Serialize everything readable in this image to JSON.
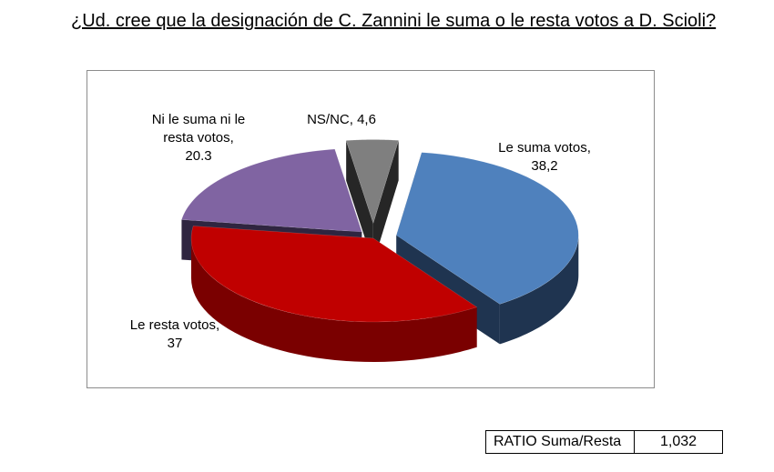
{
  "title": "¿Ud. cree que la designación de C. Zannini le suma o le resta votos a D. Scioli?",
  "chart_data": {
    "type": "pie",
    "title": "¿Ud. cree que la designación de C. Zannini le suma o le resta votos a D. Scioli?",
    "series": [
      {
        "name": "",
        "slices": [
          {
            "label": "Le suma votos,",
            "value_text": "38,2",
            "value": 38.2,
            "color": "#4f81bd",
            "side_color": "#1f3450"
          },
          {
            "label": "Le resta votos,",
            "value_text": "37",
            "value": 37,
            "color": "#c00000",
            "side_color": "#7a0000"
          },
          {
            "label": "Ni le suma ni le resta votos,",
            "value_text": "20.3",
            "value": 20.3,
            "color": "#8064a2",
            "side_color": "#2f2540"
          },
          {
            "label": "NS/NC,",
            "value_text": "4,6",
            "value": 4.6,
            "color": "#7f7f7f",
            "side_color": "#262626"
          }
        ]
      }
    ],
    "style": "3d-exploded-pie"
  },
  "labels": {
    "suma_line1": "Le suma votos,",
    "suma_line2": "38,2",
    "resta_line1": "Le resta votos,",
    "resta_line2": "37",
    "ni_line1": "Ni le suma ni le",
    "ni_line2": "resta votos,",
    "ni_line3": "20.3",
    "nsnc_line1": "NS/NC, 4,6"
  },
  "ratio": {
    "label": "RATIO Suma/Resta",
    "value": "1,032"
  }
}
